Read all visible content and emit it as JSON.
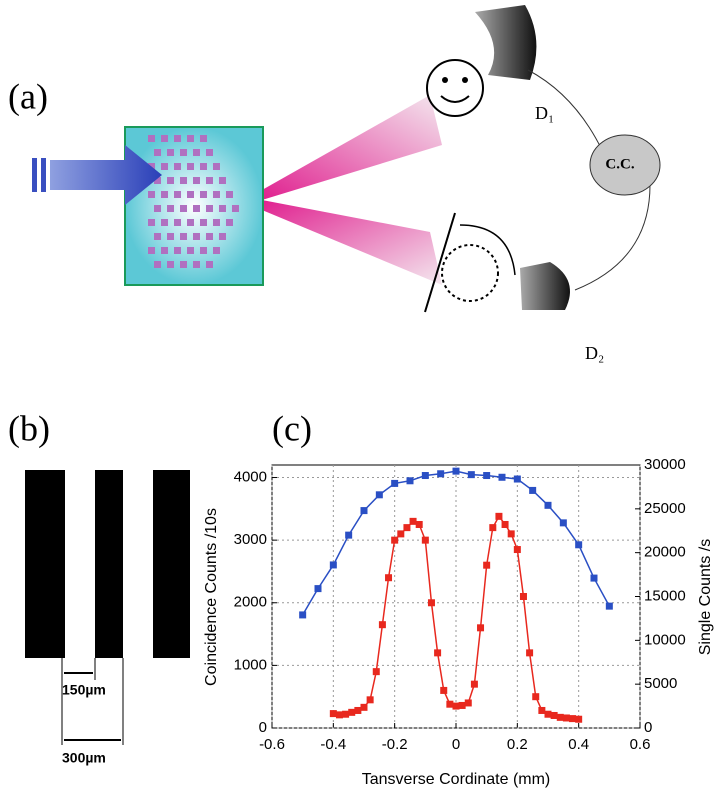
{
  "panel_a": {
    "label": "(a)",
    "detector1": "D₁",
    "coincidence": "C.C.",
    "detector2": "D₂"
  },
  "panel_b": {
    "label": "(b)",
    "slit_width": "150µm",
    "slit_period": "300µm"
  },
  "panel_c": {
    "label": "(c)"
  },
  "chart_data": {
    "type": "line",
    "xlabel": "Tansverse Cordinate (mm)",
    "ylabel": "Coincidence Counts /10s",
    "y2label": "Single Counts /s",
    "xlim": [
      -0.6,
      0.6
    ],
    "xticks": [
      -0.6,
      -0.4,
      -0.2,
      0,
      0.2,
      0.4,
      0.6
    ],
    "ylim": [
      0,
      4200
    ],
    "yticks": [
      0,
      1000,
      2000,
      3000,
      4000
    ],
    "y2lim": [
      0,
      30000
    ],
    "y2ticks": [
      0,
      5000,
      10000,
      15000,
      20000,
      25000,
      30000
    ],
    "grid": true,
    "series": [
      {
        "color": "#2a4fc4",
        "axis": "y2",
        "x": [
          -0.5,
          -0.45,
          -0.4,
          -0.35,
          -0.3,
          -0.25,
          -0.2,
          -0.15,
          -0.1,
          -0.05,
          0,
          0.05,
          0.1,
          0.15,
          0.2,
          0.25,
          0.3,
          0.35,
          0.4,
          0.45,
          0.5
        ],
        "values": [
          12900,
          15900,
          18600,
          22000,
          24800,
          26600,
          27900,
          28200,
          28800,
          29000,
          29300,
          28900,
          28800,
          28600,
          28400,
          27100,
          25400,
          23400,
          20900,
          17100,
          13900
        ]
      },
      {
        "color": "#e8281e",
        "x": [
          -0.4,
          -0.38,
          -0.36,
          -0.34,
          -0.32,
          -0.3,
          -0.28,
          -0.26,
          -0.24,
          -0.22,
          -0.2,
          -0.18,
          -0.16,
          -0.14,
          -0.12,
          -0.1,
          -0.08,
          -0.06,
          -0.04,
          -0.02,
          0,
          0.02,
          0.04,
          0.06,
          0.08,
          0.1,
          0.12,
          0.14,
          0.16,
          0.18,
          0.2,
          0.22,
          0.24,
          0.26,
          0.28,
          0.3,
          0.32,
          0.34,
          0.36,
          0.38,
          0.4
        ],
        "values": [
          230,
          210,
          220,
          250,
          280,
          330,
          450,
          900,
          1650,
          2400,
          3000,
          3100,
          3200,
          3300,
          3250,
          3000,
          2000,
          1200,
          600,
          380,
          350,
          360,
          400,
          700,
          1600,
          2600,
          3200,
          3380,
          3250,
          3100,
          2850,
          2100,
          1200,
          500,
          280,
          220,
          200,
          170,
          160,
          150,
          140
        ]
      }
    ]
  }
}
